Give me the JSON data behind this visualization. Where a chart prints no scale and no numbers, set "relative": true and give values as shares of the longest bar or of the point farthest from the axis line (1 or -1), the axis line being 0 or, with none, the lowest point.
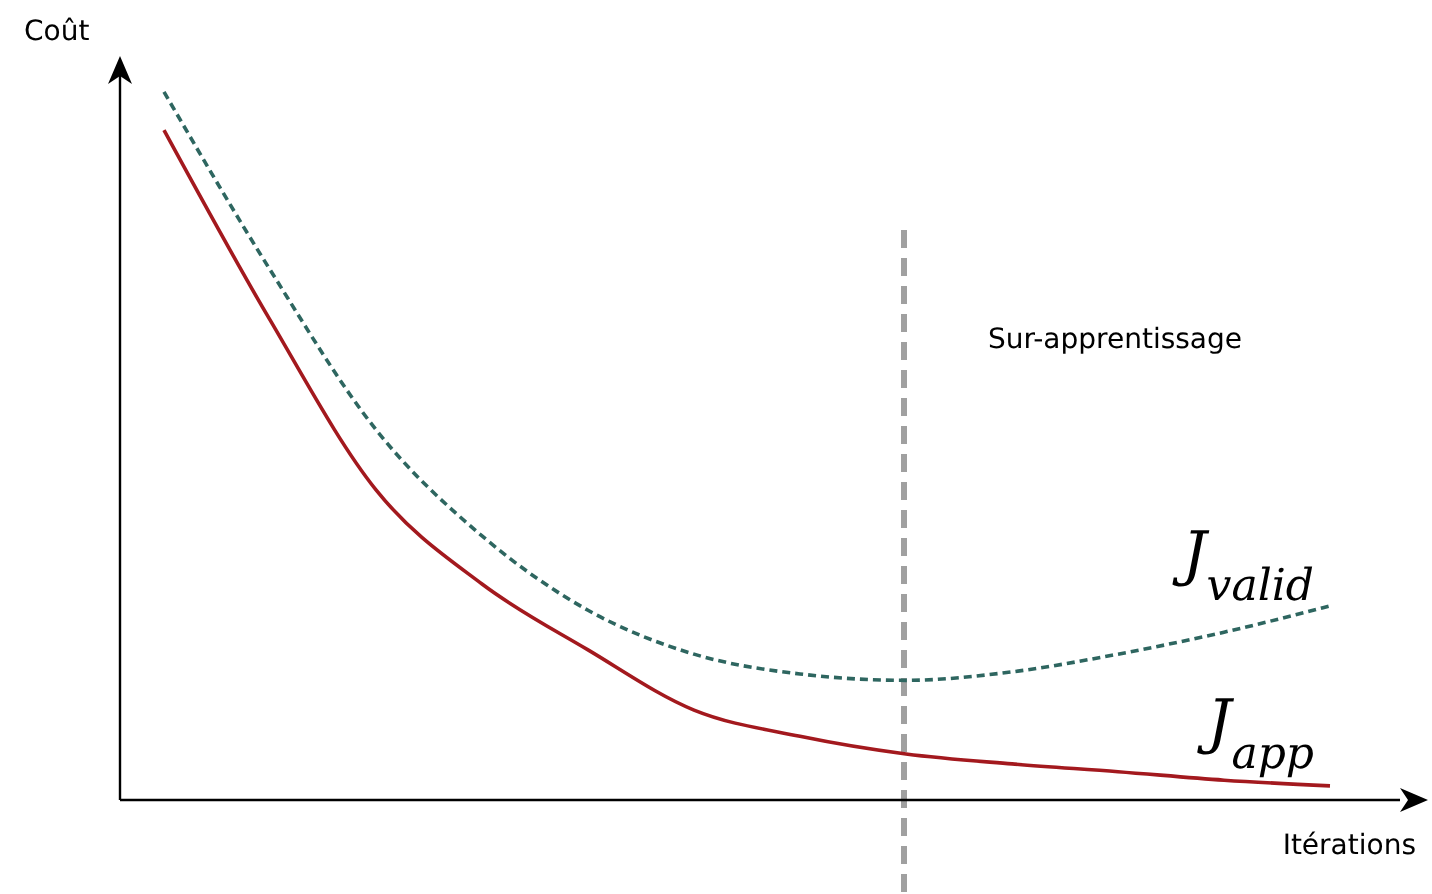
{
  "chart_data": {
    "type": "line",
    "relative": true,
    "xlabel": "Itérations",
    "ylabel": "Coût",
    "categories": [
      null,
      null,
      null,
      null,
      null,
      null,
      null,
      null,
      null,
      null,
      null,
      null
    ],
    "series": [
      {
        "name": "J$_{valid}$",
        "color": "#2e6660",
        "line_style": "dashed",
        "values": [
          1,
          0.749,
          0.523,
          0.373,
          0.268,
          0.206,
          0.178,
          0.169,
          0.181,
          0.206,
          0.237,
          0.274
        ]
      },
      {
        "name": "J$_{app}$",
        "color": "#a3191e",
        "line_style": "solid",
        "values": [
          0.946,
          0.678,
          0.438,
          0.305,
          0.212,
          0.127,
          0.09,
          0.065,
          0.051,
          0.04,
          0.028,
          0.02
        ]
      }
    ],
    "annotations": [
      "Sur-apprentissage"
    ],
    "grid": false,
    "legend": false,
    "marker": "none"
  }
}
